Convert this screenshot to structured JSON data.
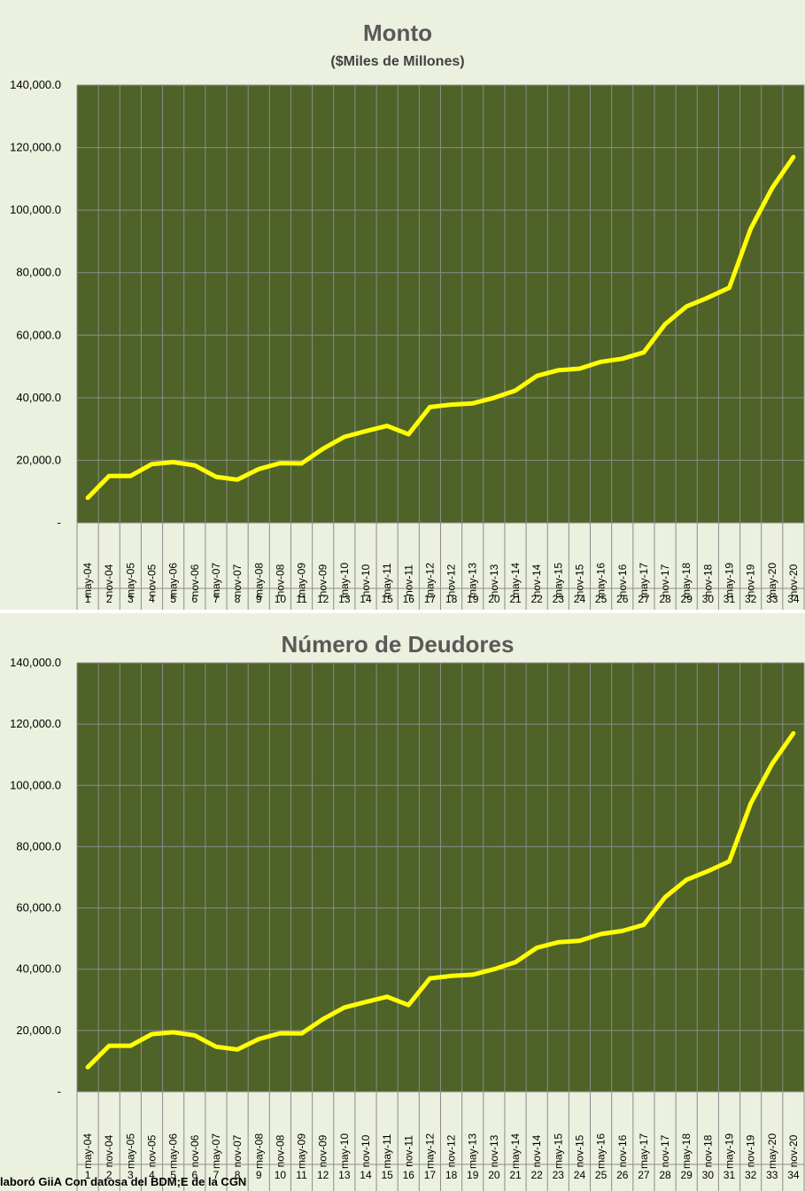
{
  "colors": {
    "panel_bg": "#ebf1de",
    "plot_bg": "#4f6228",
    "grid": "#8c8c8c",
    "line": "#ffff00",
    "axis_text": "#000000",
    "title": "#595959"
  },
  "chart_data": [
    {
      "type": "line",
      "title": "Monto",
      "subtitle": "($Miles de Millones)",
      "ylim": [
        0,
        140000
      ],
      "ytick_labels": [
        "-",
        "20,000.0",
        "40,000.0",
        "60,000.0",
        "80,000.0",
        "100,000.0",
        "120,000.0",
        "140,000.0"
      ],
      "categories": [
        "may-04",
        "nov-04",
        "may-05",
        "nov-05",
        "may-06",
        "nov-06",
        "may-07",
        "nov-07",
        "may-08",
        "nov-08",
        "may-09",
        "nov-09",
        "may-10",
        "nov-10",
        "may-11",
        "nov-11",
        "may-12",
        "nov-12",
        "may-13",
        "nov-13",
        "may-14",
        "nov-14",
        "may-15",
        "nov-15",
        "may-16",
        "nov-16",
        "may-17",
        "nov-17",
        "may-18",
        "nov-18",
        "may-19",
        "nov-19",
        "may-20",
        "nov-20"
      ],
      "indices": [
        "1",
        "2",
        "3",
        "4",
        "5",
        "6",
        "7",
        "8",
        "9",
        "10",
        "11",
        "12",
        "13",
        "14",
        "15",
        "16",
        "17",
        "18",
        "19",
        "20",
        "21",
        "22",
        "23",
        "24",
        "25",
        "26",
        "27",
        "28",
        "29",
        "30",
        "31",
        "32",
        "33",
        "34"
      ],
      "series": [
        {
          "name": "Monto",
          "values": [
            8000,
            15000,
            15000,
            18800,
            19400,
            18400,
            14700,
            13800,
            17200,
            19100,
            19000,
            23700,
            27500,
            29300,
            31000,
            28300,
            37000,
            37800,
            38200,
            40000,
            42300,
            47000,
            48800,
            49300,
            51500,
            52500,
            54500,
            63500,
            69200,
            72000,
            75200,
            94000,
            107000,
            117000
          ]
        }
      ]
    },
    {
      "type": "line",
      "title": "Número de Deudores",
      "ylim": [
        0,
        140000
      ],
      "ytick_labels": [
        "-",
        "20,000.0",
        "40,000.0",
        "60,000.0",
        "80,000.0",
        "100,000.0",
        "120,000.0",
        "140,000.0"
      ],
      "categories": [
        "may-04",
        "nov-04",
        "may-05",
        "nov-05",
        "may-06",
        "nov-06",
        "may-07",
        "nov-07",
        "may-08",
        "nov-08",
        "may-09",
        "nov-09",
        "may-10",
        "nov-10",
        "may-11",
        "nov-11",
        "may-12",
        "nov-12",
        "may-13",
        "nov-13",
        "may-14",
        "nov-14",
        "may-15",
        "nov-15",
        "may-16",
        "nov-16",
        "may-17",
        "nov-17",
        "may-18",
        "nov-18",
        "may-19",
        "nov-19",
        "may-20",
        "nov-20"
      ],
      "indices": [
        "1",
        "2",
        "3",
        "4",
        "5",
        "6",
        "7",
        "8",
        "9",
        "10",
        "11",
        "12",
        "13",
        "14",
        "15",
        "16",
        "17",
        "18",
        "19",
        "20",
        "21",
        "22",
        "23",
        "24",
        "25",
        "26",
        "27",
        "28",
        "29",
        "30",
        "31",
        "32",
        "33",
        "34"
      ],
      "series": [
        {
          "name": "Número de Deudores",
          "values": [
            8000,
            15000,
            15000,
            18800,
            19400,
            18400,
            14700,
            13800,
            17200,
            19100,
            19000,
            23700,
            27500,
            29300,
            31000,
            28300,
            37000,
            37800,
            38200,
            40000,
            42300,
            47000,
            48800,
            49300,
            51500,
            52500,
            54500,
            63500,
            69200,
            72000,
            75200,
            94000,
            107000,
            117000
          ]
        }
      ]
    }
  ],
  "footer": "laboró GiiA Con datosa del BDM;E de la CGN"
}
